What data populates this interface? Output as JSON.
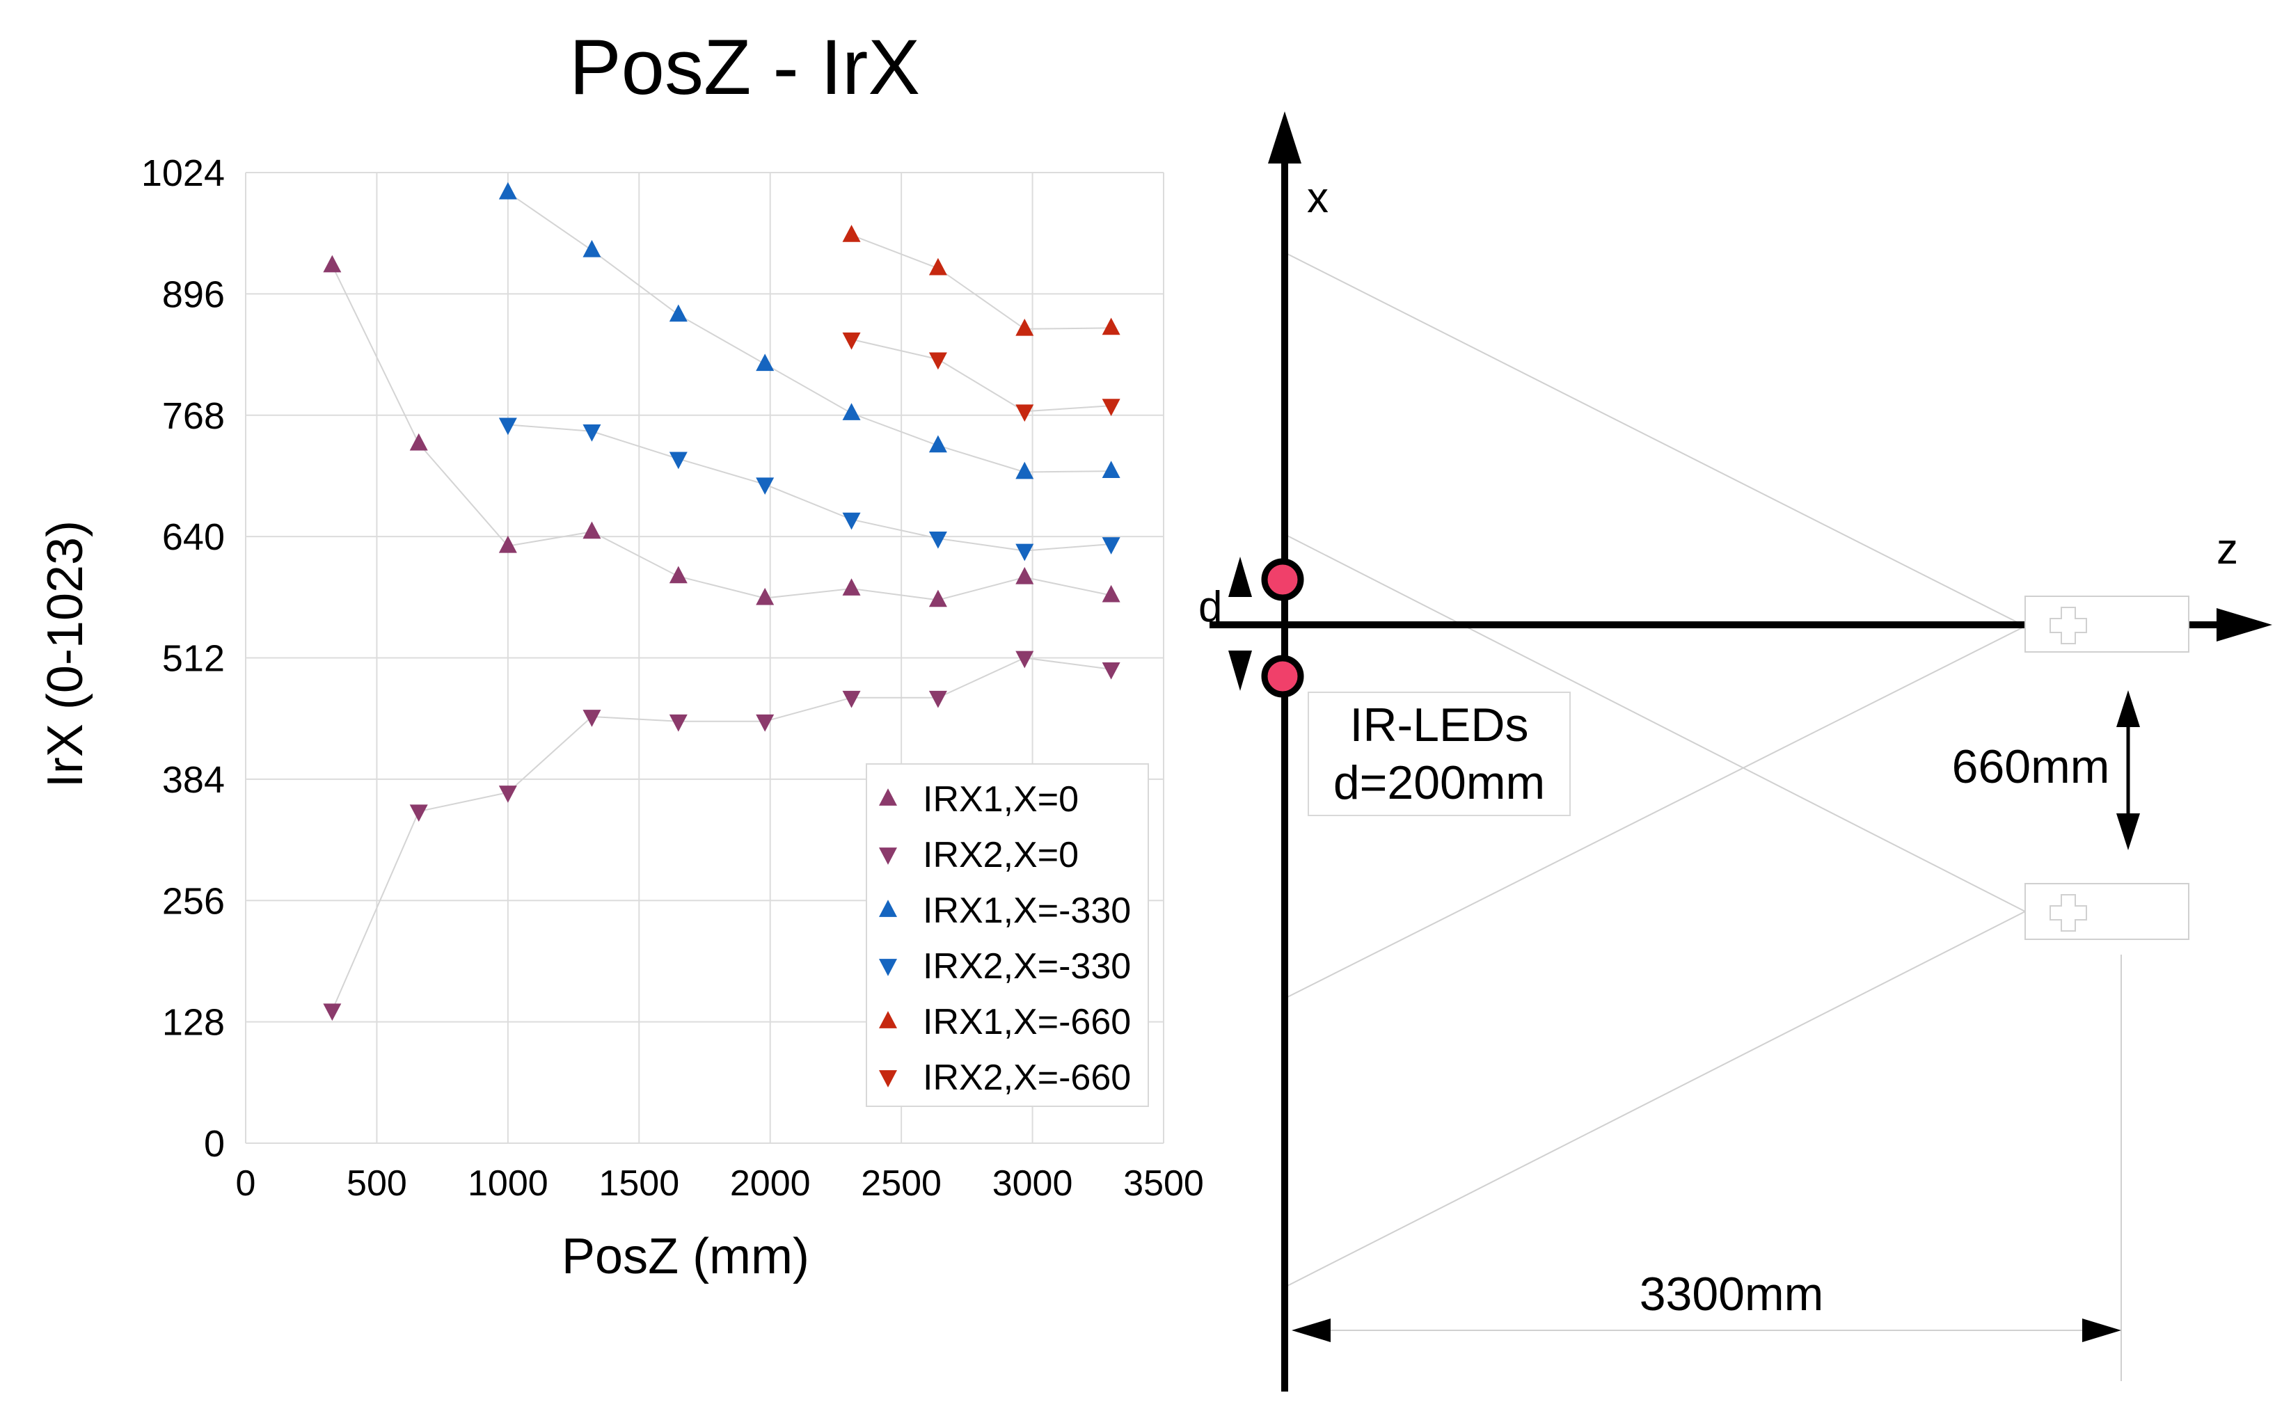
{
  "chart_data": {
    "type": "scatter",
    "title": "PosZ - IrX",
    "xlabel": "PosZ (mm)",
    "ylabel": "IrX (0-1023)",
    "xlim": [
      0,
      3500
    ],
    "ylim": [
      0,
      1024
    ],
    "xticks": [
      0,
      500,
      1000,
      1500,
      2000,
      2500,
      3000,
      3500
    ],
    "yticks": [
      0,
      128,
      256,
      384,
      512,
      640,
      768,
      896,
      1024
    ],
    "grid": true,
    "legend_position": "bottom-right",
    "series": [
      {
        "name": "IRX1,X=0",
        "marker": "triangle-up",
        "color": "#8b3a6b",
        "x": [
          330,
          660,
          1000,
          1320,
          1650,
          1980,
          2310,
          2640,
          2970,
          3300
        ],
        "y": [
          926,
          738,
          630,
          645,
          598,
          575,
          585,
          573,
          597,
          578
        ]
      },
      {
        "name": "IRX2,X=0",
        "marker": "triangle-down",
        "color": "#8b3a6b",
        "x": [
          330,
          660,
          1000,
          1320,
          1650,
          1980,
          2310,
          2640,
          2970,
          3300
        ],
        "y": [
          140,
          350,
          370,
          450,
          445,
          445,
          470,
          470,
          512,
          500
        ]
      },
      {
        "name": "IRX1,X=-330",
        "marker": "triangle-up",
        "color": "#1565c0",
        "x": [
          1000,
          1320,
          1650,
          1980,
          2310,
          2640,
          2970,
          3300
        ],
        "y": [
          1003,
          942,
          874,
          822,
          770,
          736,
          708,
          709
        ]
      },
      {
        "name": "IRX2,X=-330",
        "marker": "triangle-down",
        "color": "#1565c0",
        "x": [
          1000,
          1320,
          1650,
          1980,
          2310,
          2640,
          2970,
          3300
        ],
        "y": [
          758,
          751,
          722,
          695,
          658,
          638,
          625,
          632
        ]
      },
      {
        "name": "IRX1,X=-660",
        "marker": "triangle-up",
        "color": "#c62810",
        "x": [
          2310,
          2640,
          2970,
          3300
        ],
        "y": [
          958,
          923,
          859,
          860
        ]
      },
      {
        "name": "IRX2,X=-660",
        "marker": "triangle-down",
        "color": "#c62810",
        "x": [
          2310,
          2640,
          2970,
          3300
        ],
        "y": [
          848,
          827,
          772,
          778
        ]
      }
    ]
  },
  "diagram": {
    "x_axis_label": "x",
    "z_axis_label": "z",
    "d_label": "d",
    "led_box_line1": "IR-LEDs",
    "led_box_line2": "d=200mm",
    "offset_label": "660mm",
    "distance_label": "3300mm",
    "led_color": "#f0406a"
  }
}
